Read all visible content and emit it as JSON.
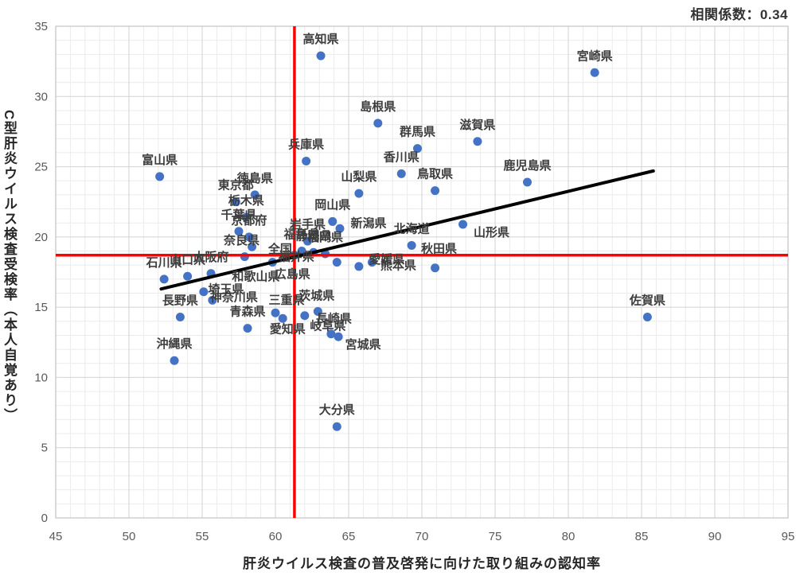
{
  "header": {
    "correlation_label": "相関係数：0.34"
  },
  "chart_data": {
    "type": "scatter",
    "title": "",
    "annotations": [
      "相関係数：0.34"
    ],
    "xlabel": "肝炎ウイルス検査の普及啓発に向けた取り組みの認知率",
    "ylabel": "C型肝炎ウイルス検査受検率（本人自覚あり）",
    "xlim": [
      45,
      95
    ],
    "ylim": [
      0,
      35
    ],
    "x_ticks": [
      45,
      50,
      55,
      60,
      65,
      70,
      75,
      80,
      85,
      90,
      95
    ],
    "y_ticks": [
      0,
      5,
      10,
      15,
      20,
      25,
      30,
      35
    ],
    "grid": {
      "minor_step": 1,
      "major_step": 5,
      "minor_color": "#ebebeb",
      "major_color": "#d2d2d2",
      "border_color": "#c3c3c3"
    },
    "point_color": "#4472c4",
    "reference_lines": {
      "x": 61.3,
      "y": 18.7,
      "color": "#ff0000",
      "width": 3.5
    },
    "trend_line": {
      "x1": 52.2,
      "y1": 16.3,
      "x2": 85.8,
      "y2": 24.7,
      "color": "#000000",
      "width": 4
    },
    "legend": "none",
    "points": [
      {
        "name": "全国",
        "x": 61.3,
        "y": 18.7,
        "lox": -18,
        "loy": -8
      },
      {
        "name": "北海道",
        "x": 69.3,
        "y": 19.4
      },
      {
        "name": "青森県",
        "x": 58.1,
        "y": 13.5
      },
      {
        "name": "岩手県",
        "x": 62.2,
        "y": 19.7
      },
      {
        "name": "宮城県",
        "x": 64.3,
        "y": 12.9,
        "lox": 31,
        "loy": 10
      },
      {
        "name": "秋田県",
        "x": 70.9,
        "y": 17.8,
        "lox": 5,
        "loy": -24
      },
      {
        "name": "山形県",
        "x": 72.8,
        "y": 20.9,
        "lox": 36,
        "loy": 10
      },
      {
        "name": "福島県",
        "x": 61.8,
        "y": 19.0
      },
      {
        "name": "茨城県",
        "x": 62.0,
        "y": 14.4,
        "lox": 15,
        "loy": -25
      },
      {
        "name": "栃木県",
        "x": 58.0,
        "y": 21.4
      },
      {
        "name": "群馬県",
        "x": 69.7,
        "y": 26.3
      },
      {
        "name": "埼玉県",
        "x": 55.1,
        "y": 16.1,
        "lox": 28,
        "loy": -3
      },
      {
        "name": "千葉県",
        "x": 57.5,
        "y": 20.4
      },
      {
        "name": "東京都",
        "x": 57.3,
        "y": 22.5
      },
      {
        "name": "神奈川県",
        "x": 55.7,
        "y": 15.5,
        "lox": 27,
        "loy": -4
      },
      {
        "name": "新潟県",
        "x": 64.4,
        "y": 20.6,
        "lox": 36,
        "loy": -7
      },
      {
        "name": "富山県",
        "x": 52.1,
        "y": 24.3
      },
      {
        "name": "石川県",
        "x": 52.4,
        "y": 17.0
      },
      {
        "name": "福井県",
        "x": 64.2,
        "y": 18.2,
        "lox": -51,
        "loy": -7
      },
      {
        "name": "山梨県",
        "x": 65.7,
        "y": 23.1
      },
      {
        "name": "長野県",
        "x": 53.5,
        "y": 14.3
      },
      {
        "name": "岐阜県",
        "x": 63.8,
        "y": 13.1,
        "lox": -4,
        "loy": -10
      },
      {
        "name": "静岡県",
        "x": 62.6,
        "y": 18.9
      },
      {
        "name": "愛知県",
        "x": 60.5,
        "y": 14.2,
        "lox": 6,
        "loy": 13
      },
      {
        "name": "三重県",
        "x": 60.0,
        "y": 14.6,
        "lox": 14,
        "loy": -16
      },
      {
        "name": "滋賀県",
        "x": 73.8,
        "y": 26.8
      },
      {
        "name": "京都府",
        "x": 58.2,
        "y": 20.0
      },
      {
        "name": "大阪府",
        "x": 55.6,
        "y": 17.4
      },
      {
        "name": "兵庫県",
        "x": 62.1,
        "y": 25.4
      },
      {
        "name": "奈良県",
        "x": 58.4,
        "y": 19.3,
        "lox": -13,
        "loy": -8
      },
      {
        "name": "和歌山県",
        "x": 57.9,
        "y": 18.6,
        "lox": 14,
        "loy": 25
      },
      {
        "name": "鳥取県",
        "x": 70.9,
        "y": 23.3
      },
      {
        "name": "島根県",
        "x": 67.0,
        "y": 28.1
      },
      {
        "name": "岡山県",
        "x": 63.9,
        "y": 21.1
      },
      {
        "name": "広島県",
        "x": 59.8,
        "y": 18.2,
        "lox": 25,
        "loy": 15
      },
      {
        "name": "山口県",
        "x": 54.0,
        "y": 17.2
      },
      {
        "name": "徳島県",
        "x": 58.6,
        "y": 23.0
      },
      {
        "name": "香川県",
        "x": 68.6,
        "y": 24.5
      },
      {
        "name": "愛媛県",
        "x": 65.7,
        "y": 17.9,
        "lox": 35,
        "loy": -9
      },
      {
        "name": "高知県",
        "x": 63.1,
        "y": 32.9
      },
      {
        "name": "福岡県",
        "x": 63.4,
        "y": 18.8
      },
      {
        "name": "佐賀県",
        "x": 85.4,
        "y": 14.3
      },
      {
        "name": "長崎県",
        "x": 62.9,
        "y": 14.7,
        "lox": 20,
        "loy": 9
      },
      {
        "name": "熊本県",
        "x": 66.6,
        "y": 18.2,
        "lox": 33,
        "loy": 4
      },
      {
        "name": "大分県",
        "x": 64.2,
        "y": 6.5
      },
      {
        "name": "宮崎県",
        "x": 81.8,
        "y": 31.7
      },
      {
        "name": "鹿児島県",
        "x": 77.2,
        "y": 23.9
      },
      {
        "name": "沖縄県",
        "x": 53.1,
        "y": 11.2
      }
    ]
  }
}
